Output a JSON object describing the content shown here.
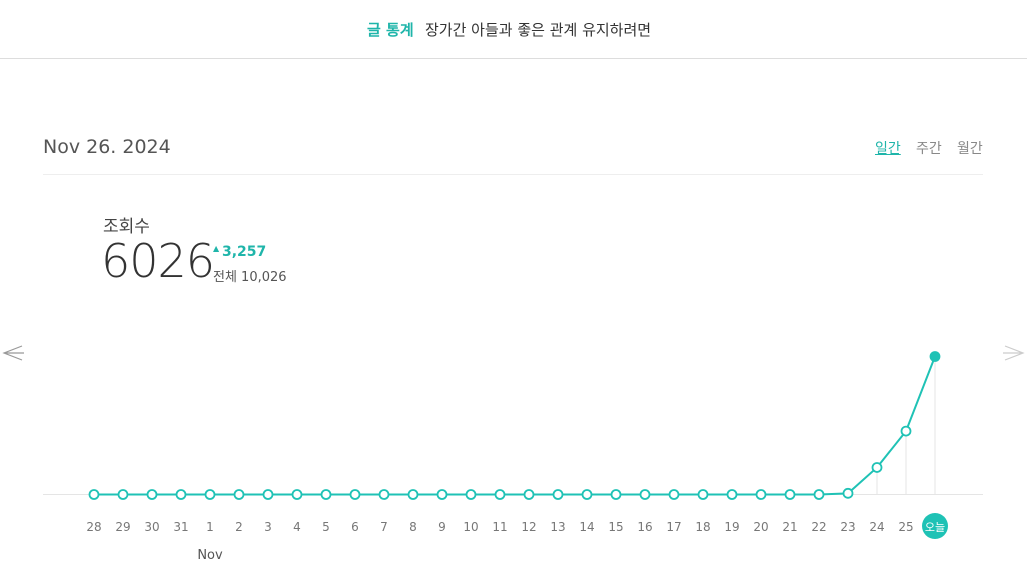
{
  "header": {
    "label": "글 통계",
    "title": "장가간 아들과 좋은 관계 유지하려면"
  },
  "date": "Nov 26. 2024",
  "tabs": [
    "일간",
    "주간",
    "월간"
  ],
  "stats": {
    "label": "조회수",
    "value": 6026,
    "change": "3,257",
    "total": "전체 10,026"
  },
  "chart_data": {
    "type": "line",
    "color": "#1fc2b5",
    "categories": [
      "28",
      "29",
      "30",
      "31",
      "1",
      "2",
      "3",
      "4",
      "5",
      "6",
      "7",
      "8",
      "9",
      "10",
      "11",
      "12",
      "13",
      "14",
      "15",
      "16",
      "17",
      "18",
      "19",
      "20",
      "21",
      "22",
      "23",
      "24",
      "25",
      "오늘"
    ],
    "values": [
      0,
      0,
      0,
      0,
      0,
      0,
      0,
      0,
      0,
      0,
      0,
      0,
      0,
      0,
      0,
      0,
      0,
      0,
      0,
      0,
      0,
      0,
      0,
      0,
      0,
      0,
      51,
      1180,
      2769,
      6026
    ],
    "month_label": "Nov"
  }
}
